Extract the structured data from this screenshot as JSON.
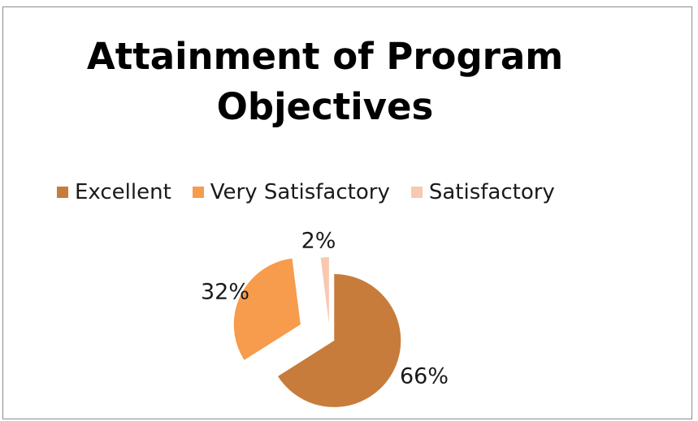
{
  "chart_data": {
    "type": "pie",
    "title_line1": "Attainment of Program",
    "title_line2": "Objectives",
    "legend_position": "top",
    "exploded": true,
    "slices": [
      {
        "label": "Excellent",
        "value": 66,
        "value_label": "66%",
        "color": "#C77C3C"
      },
      {
        "label": "Very Satisfactory",
        "value": 32,
        "value_label": "32%",
        "color": "#F79B4C"
      },
      {
        "label": "Satisfactory",
        "value": 2,
        "value_label": "2%",
        "color": "#F8C8B0"
      }
    ]
  }
}
